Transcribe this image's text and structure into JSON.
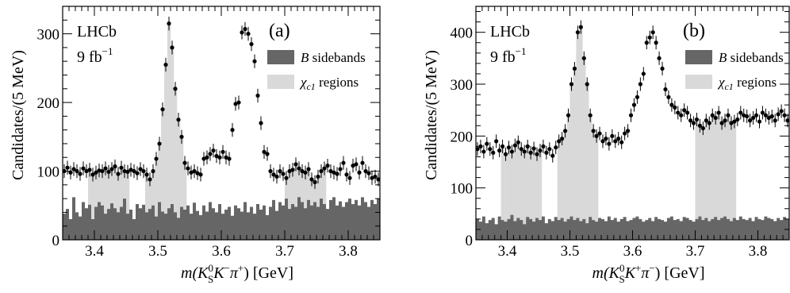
{
  "chart_data": [
    {
      "type": "scatter",
      "panel_label": "(a)",
      "experiment": "LHCb",
      "lumi_value": "9 fb",
      "lumi_exp": "−1",
      "ylabel": "Candidates/(5 MeV)",
      "xlabel_parts": {
        "m": "m(K",
        "sub": "S",
        "sup": "0",
        "rest": "K",
        "sup2": "−",
        "pi": "π",
        "sup3": "+",
        "end": ") [GeV]"
      },
      "xlim": [
        3.35,
        3.85
      ],
      "ylim": [
        0,
        340
      ],
      "xticks": [
        "3.4",
        "3.5",
        "3.6",
        "3.7",
        "3.8"
      ],
      "yticks": [
        "0",
        "100",
        "200",
        "300"
      ],
      "legend": [
        {
          "label": "B sidebands",
          "color": "#666666"
        },
        {
          "label": "χc1 regions",
          "color": "#d9d9d9"
        }
      ],
      "chi_regions": [
        [
          3.39,
          3.455
        ],
        [
          3.48,
          3.545
        ],
        [
          3.7,
          3.765
        ]
      ],
      "bin_width": 0.005,
      "x_start": 3.3525,
      "data_values": [
        100,
        105,
        98,
        103,
        100,
        96,
        104,
        100,
        102,
        95,
        98,
        101,
        100,
        104,
        99,
        103,
        107,
        96,
        105,
        100,
        99,
        102,
        100,
        97,
        103,
        100,
        95,
        88,
        100,
        118,
        140,
        190,
        255,
        315,
        280,
        220,
        175,
        150,
        112,
        104,
        98,
        100,
        97,
        95,
        118,
        120,
        125,
        130,
        122,
        120,
        128,
        120,
        118,
        160,
        198,
        200,
        302,
        307,
        300,
        285,
        260,
        210,
        170,
        128,
        125,
        100,
        95,
        92,
        100,
        96,
        90,
        100,
        102,
        110,
        104,
        100,
        98,
        103,
        88,
        84,
        92,
        100,
        104,
        108,
        100,
        98,
        96,
        103,
        112,
        95,
        90,
        108,
        110,
        98,
        112,
        100,
        97,
        90,
        92,
        88,
        85
      ],
      "errors": 10,
      "sideband_values": [
        38,
        45,
        30,
        62,
        40,
        34,
        55,
        46,
        51,
        30,
        48,
        55,
        50,
        38,
        45,
        53,
        46,
        40,
        48,
        60,
        38,
        44,
        30,
        52,
        46,
        51,
        40,
        45,
        50,
        34,
        55,
        41,
        38,
        46,
        52,
        40,
        32,
        48,
        44,
        50,
        38,
        54,
        42,
        36,
        50,
        41,
        55,
        46,
        40,
        52,
        38,
        44,
        48,
        35,
        50,
        46,
        41,
        55,
        40,
        48,
        38,
        52,
        44,
        50,
        36,
        48,
        58,
        42,
        55,
        50,
        60,
        45,
        52,
        48,
        62,
        55,
        46,
        58,
        50,
        55,
        48,
        60,
        52,
        45,
        58,
        62,
        50,
        56,
        48,
        55,
        60,
        52,
        58,
        50,
        62,
        55,
        48,
        58,
        52,
        60
      ]
    },
    {
      "type": "scatter",
      "panel_label": "(b)",
      "experiment": "LHCb",
      "lumi_value": "9 fb",
      "lumi_exp": "−1",
      "ylabel": "Candidates/(5 MeV)",
      "xlabel_parts": {
        "m": "m(K",
        "sub": "S",
        "sup": "0",
        "rest": "K",
        "sup2": "+",
        "pi": "π",
        "sup3": "−",
        "end": ") [GeV]"
      },
      "xlim": [
        3.35,
        3.85
      ],
      "ylim": [
        0,
        450
      ],
      "xticks": [
        "3.4",
        "3.5",
        "3.6",
        "3.7",
        "3.8"
      ],
      "yticks": [
        "0",
        "100",
        "200",
        "300",
        "400"
      ],
      "legend": [
        {
          "label": "B sidebands",
          "color": "#666666"
        },
        {
          "label": "χc1 regions",
          "color": "#d9d9d9"
        }
      ],
      "chi_regions": [
        [
          3.39,
          3.455
        ],
        [
          3.48,
          3.545
        ],
        [
          3.7,
          3.765
        ]
      ],
      "bin_width": 0.005,
      "x_start": 3.3525,
      "data_values": [
        175,
        180,
        170,
        185,
        175,
        168,
        190,
        172,
        180,
        165,
        178,
        170,
        182,
        188,
        175,
        170,
        180,
        168,
        176,
        165,
        172,
        180,
        168,
        175,
        162,
        178,
        190,
        195,
        210,
        240,
        300,
        330,
        400,
        410,
        350,
        300,
        240,
        210,
        200,
        205,
        190,
        195,
        185,
        200,
        190,
        195,
        188,
        205,
        210,
        240,
        260,
        275,
        300,
        320,
        380,
        390,
        400,
        380,
        350,
        330,
        290,
        275,
        260,
        255,
        245,
        240,
        250,
        245,
        230,
        225,
        232,
        220,
        215,
        230,
        225,
        240,
        235,
        245,
        225,
        230,
        240,
        225,
        228,
        232,
        245,
        240,
        238,
        230,
        235,
        240,
        228,
        245,
        240,
        235,
        238,
        230,
        242,
        248,
        240,
        230,
        232
      ],
      "errors": 13,
      "sideband_values": [
        40,
        35,
        45,
        32,
        38,
        42,
        30,
        45,
        38,
        35,
        40,
        48,
        36,
        42,
        38,
        30,
        44,
        40,
        35,
        42,
        38,
        45,
        32,
        40,
        36,
        44,
        38,
        42,
        35,
        40,
        45,
        38,
        42,
        36,
        40,
        32,
        44,
        38,
        35,
        42,
        40,
        36,
        45,
        38,
        42,
        35,
        40,
        44,
        36,
        38,
        42,
        45,
        40,
        35,
        38,
        42,
        36,
        44,
        40,
        38,
        35,
        42,
        45,
        38,
        40,
        36,
        44,
        42,
        38,
        35,
        40,
        45,
        38,
        42,
        36,
        40,
        44,
        38,
        42,
        45,
        40,
        36,
        42,
        38,
        45,
        40,
        38,
        42,
        36,
        44,
        40,
        38,
        45,
        42,
        40,
        36,
        42,
        38,
        44,
        40
      ]
    }
  ]
}
